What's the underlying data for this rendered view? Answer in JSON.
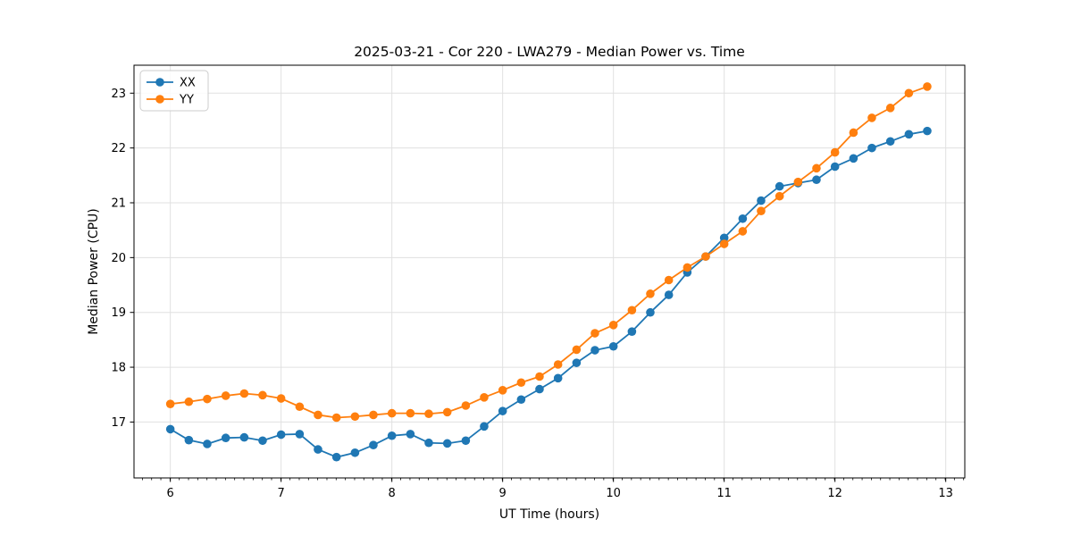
{
  "chart_data": {
    "type": "line",
    "title": "2025-03-21 - Cor 220 - LWA279 - Median Power vs. Time",
    "xlabel": "UT Time (hours)",
    "ylabel": "Median Power (CPU)",
    "xlim": [
      5.672,
      13.172
    ],
    "ylim": [
      15.98,
      23.51
    ],
    "x_ticks": [
      6,
      7,
      8,
      9,
      10,
      11,
      12,
      13
    ],
    "y_ticks": [
      17,
      18,
      19,
      20,
      21,
      22,
      23
    ],
    "x_minor_tick_step": 0.0833,
    "grid": true,
    "legend_position": "upper-left",
    "x": [
      6.0,
      6.167,
      6.333,
      6.5,
      6.667,
      6.833,
      7.0,
      7.167,
      7.333,
      7.5,
      7.667,
      7.833,
      8.0,
      8.167,
      8.333,
      8.5,
      8.667,
      8.833,
      9.0,
      9.167,
      9.333,
      9.5,
      9.667,
      9.833,
      10.0,
      10.167,
      10.333,
      10.5,
      10.667,
      10.833,
      11.0,
      11.167,
      11.333,
      11.5,
      11.667,
      11.833,
      12.0,
      12.167,
      12.333,
      12.5,
      12.667,
      12.833
    ],
    "series": [
      {
        "name": "XX",
        "color": "#1f77b4",
        "values": [
          16.87,
          16.67,
          16.6,
          16.71,
          16.72,
          16.66,
          16.77,
          16.78,
          16.5,
          16.36,
          16.44,
          16.58,
          16.75,
          16.78,
          16.62,
          16.61,
          16.66,
          16.92,
          17.2,
          17.41,
          17.6,
          17.8,
          18.08,
          18.31,
          18.38,
          18.65,
          19.0,
          19.32,
          19.73,
          20.02,
          20.36,
          20.71,
          21.04,
          21.3,
          21.36,
          21.42,
          21.66,
          21.81,
          22.0,
          22.12,
          22.25,
          22.31
        ]
      },
      {
        "name": "YY",
        "color": "#ff7f0e",
        "values": [
          17.33,
          17.37,
          17.42,
          17.48,
          17.52,
          17.49,
          17.43,
          17.28,
          17.13,
          17.08,
          17.1,
          17.13,
          17.16,
          17.16,
          17.15,
          17.18,
          17.3,
          17.45,
          17.58,
          17.72,
          17.83,
          18.05,
          18.32,
          18.62,
          18.77,
          19.04,
          19.34,
          19.59,
          19.82,
          20.02,
          20.25,
          20.48,
          20.85,
          21.12,
          21.38,
          21.63,
          21.92,
          22.28,
          22.55,
          22.73,
          23.0,
          23.12
        ]
      }
    ]
  },
  "style": {
    "grid_color": "#e0e0e0",
    "spine_color": "#000000",
    "tick_color": "#000000",
    "legend_border_color": "#cccccc"
  }
}
